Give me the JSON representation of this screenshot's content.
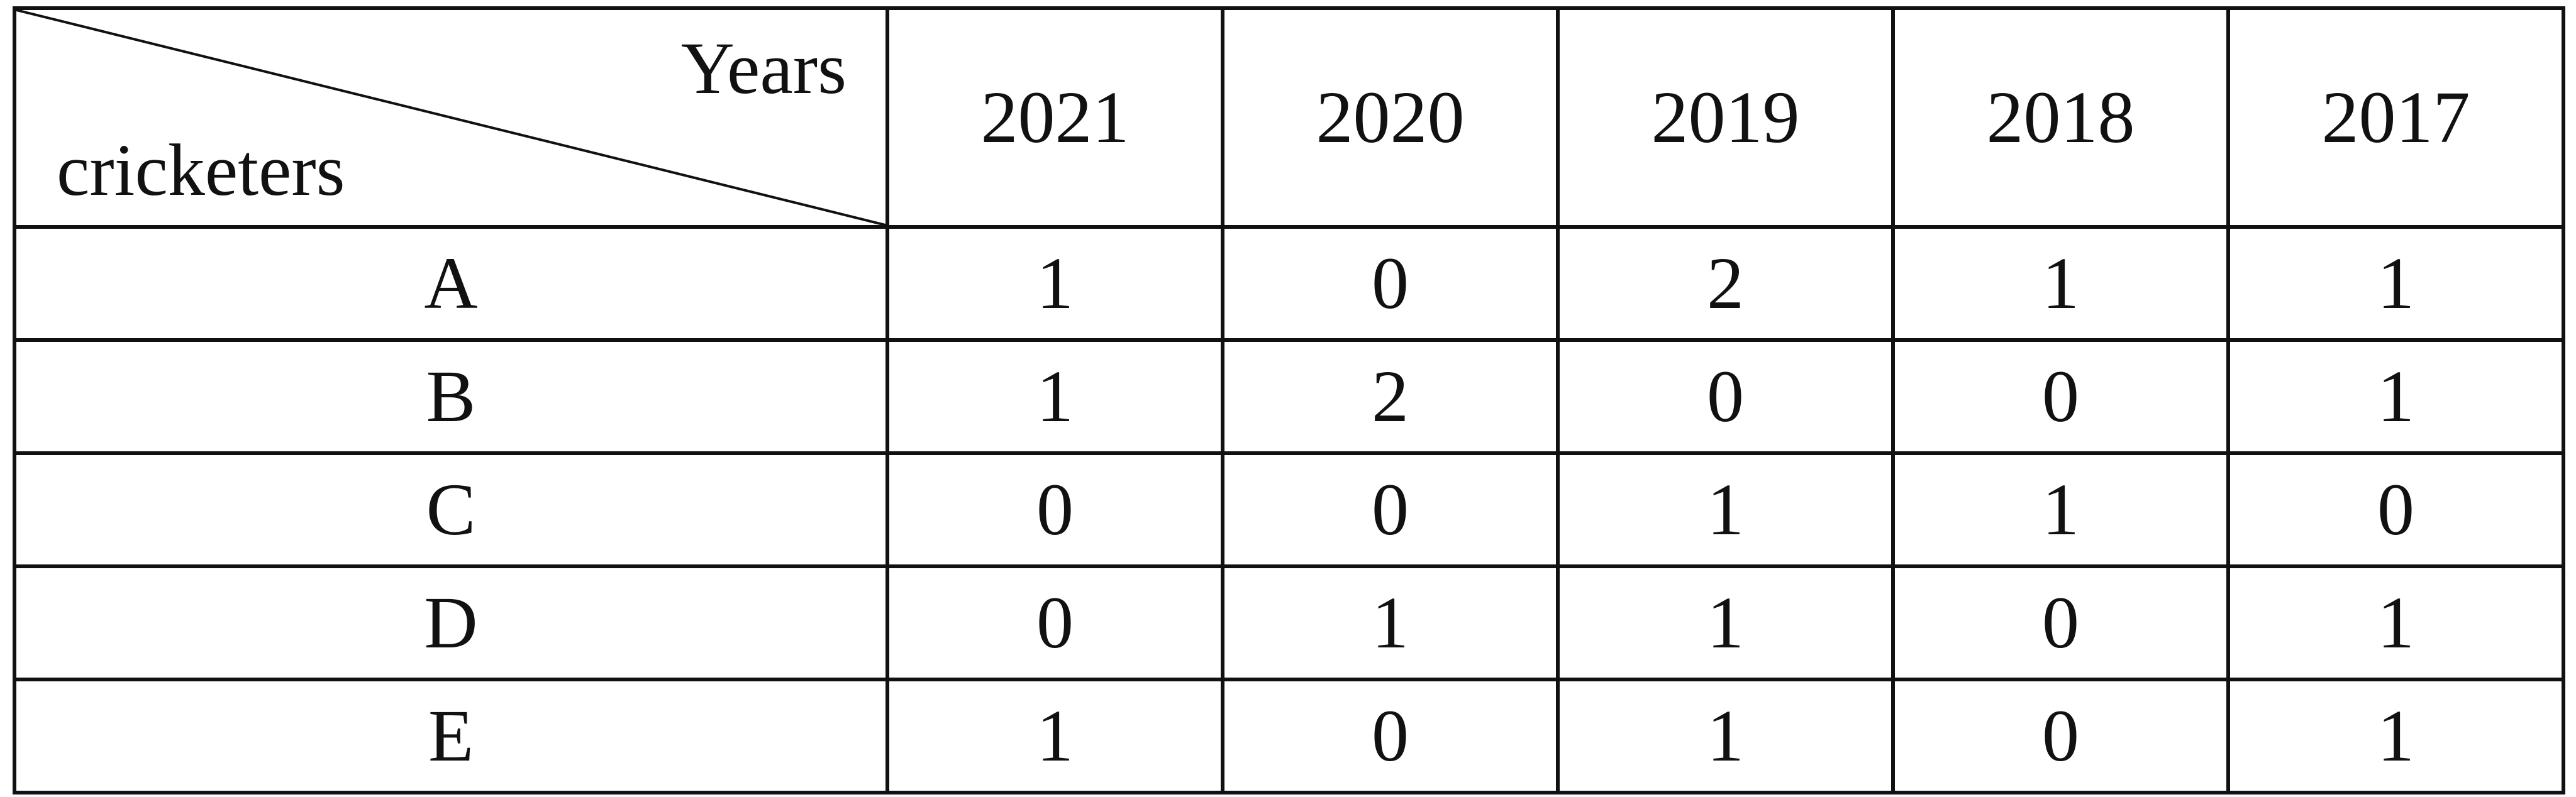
{
  "table": {
    "corner_column_label": "Years",
    "corner_row_label": "cricketers",
    "years": [
      "2021",
      "2020",
      "2019",
      "2018",
      "2017"
    ],
    "rows": [
      {
        "label": "A",
        "values": [
          "1",
          "0",
          "2",
          "1",
          "1"
        ]
      },
      {
        "label": "B",
        "values": [
          "1",
          "2",
          "0",
          "0",
          "1"
        ]
      },
      {
        "label": "C",
        "values": [
          "0",
          "0",
          "1",
          "1",
          "0"
        ]
      },
      {
        "label": "D",
        "values": [
          "0",
          "1",
          "1",
          "0",
          "1"
        ]
      },
      {
        "label": "E",
        "values": [
          "1",
          "0",
          "1",
          "0",
          "1"
        ]
      }
    ]
  }
}
